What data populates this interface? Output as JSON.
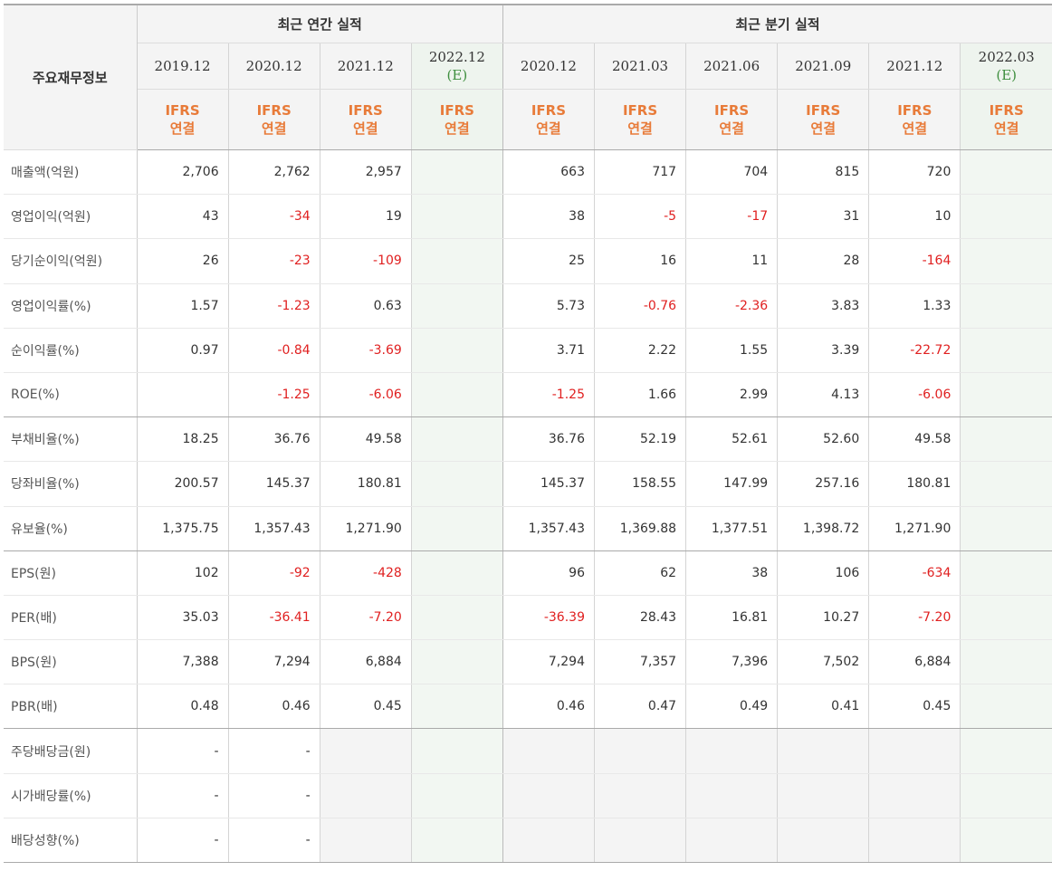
{
  "table_title": "주요재무정보",
  "group_annual": "최근 연간 실적",
  "group_quarter": "최근 분기 실적",
  "periods": [
    {
      "p1": "2019.12",
      "p2": "",
      "est": false
    },
    {
      "p1": "2020.12",
      "p2": "",
      "est": false
    },
    {
      "p1": "2021.12",
      "p2": "",
      "est": false
    },
    {
      "p1": "2022.12",
      "p2": "(E)",
      "est": true
    },
    {
      "p1": "2020.12",
      "p2": "",
      "est": false
    },
    {
      "p1": "2021.03",
      "p2": "",
      "est": false
    },
    {
      "p1": "2021.06",
      "p2": "",
      "est": false
    },
    {
      "p1": "2021.09",
      "p2": "",
      "est": false
    },
    {
      "p1": "2021.12",
      "p2": "",
      "est": false
    },
    {
      "p1": "2022.03",
      "p2": "(E)",
      "est": true
    }
  ],
  "basis_l1": "IFRS",
  "basis_l2": "연결",
  "rows": [
    {
      "label": "매출액(억원)",
      "values": [
        "2,706",
        "2,762",
        "2,957",
        "",
        "663",
        "717",
        "704",
        "815",
        "720",
        ""
      ]
    },
    {
      "label": "영업이익(억원)",
      "values": [
        "43",
        "-34",
        "19",
        "",
        "38",
        "-5",
        "-17",
        "31",
        "10",
        ""
      ]
    },
    {
      "label": "당기순이익(억원)",
      "values": [
        "26",
        "-23",
        "-109",
        "",
        "25",
        "16",
        "11",
        "28",
        "-164",
        ""
      ]
    },
    {
      "label": "영업이익률(%)",
      "values": [
        "1.57",
        "-1.23",
        "0.63",
        "",
        "5.73",
        "-0.76",
        "-2.36",
        "3.83",
        "1.33",
        ""
      ]
    },
    {
      "label": "순이익률(%)",
      "values": [
        "0.97",
        "-0.84",
        "-3.69",
        "",
        "3.71",
        "2.22",
        "1.55",
        "3.39",
        "-22.72",
        ""
      ]
    },
    {
      "label": "ROE(%)",
      "values": [
        "",
        "-1.25",
        "-6.06",
        "",
        "-1.25",
        "1.66",
        "2.99",
        "4.13",
        "-6.06",
        ""
      ]
    },
    {
      "label": "부채비율(%)",
      "values": [
        "18.25",
        "36.76",
        "49.58",
        "",
        "36.76",
        "52.19",
        "52.61",
        "52.60",
        "49.58",
        ""
      ]
    },
    {
      "label": "당좌비율(%)",
      "values": [
        "200.57",
        "145.37",
        "180.81",
        "",
        "145.37",
        "158.55",
        "147.99",
        "257.16",
        "180.81",
        ""
      ]
    },
    {
      "label": "유보율(%)",
      "values": [
        "1,375.75",
        "1,357.43",
        "1,271.90",
        "",
        "1,357.43",
        "1,369.88",
        "1,377.51",
        "1,398.72",
        "1,271.90",
        ""
      ]
    },
    {
      "label": "EPS(원)",
      "values": [
        "102",
        "-92",
        "-428",
        "",
        "96",
        "62",
        "38",
        "106",
        "-634",
        ""
      ]
    },
    {
      "label": "PER(배)",
      "values": [
        "35.03",
        "-36.41",
        "-7.20",
        "",
        "-36.39",
        "28.43",
        "16.81",
        "10.27",
        "-7.20",
        ""
      ]
    },
    {
      "label": "BPS(원)",
      "values": [
        "7,388",
        "7,294",
        "6,884",
        "",
        "7,294",
        "7,357",
        "7,396",
        "7,502",
        "6,884",
        ""
      ]
    },
    {
      "label": "PBR(배)",
      "values": [
        "0.48",
        "0.46",
        "0.45",
        "",
        "0.46",
        "0.47",
        "0.49",
        "0.41",
        "0.45",
        ""
      ]
    },
    {
      "label": "주당배당금(원)",
      "values": [
        "-",
        "-",
        "",
        "",
        "",
        "",
        "",
        "",
        "",
        ""
      ]
    },
    {
      "label": "시가배당률(%)",
      "values": [
        "-",
        "-",
        "",
        "",
        "",
        "",
        "",
        "",
        "",
        ""
      ]
    },
    {
      "label": "배당성향(%)",
      "values": [
        "-",
        "-",
        "",
        "",
        "",
        "",
        "",
        "",
        "",
        ""
      ]
    }
  ],
  "colors": {
    "negative": "#e02020",
    "basis": "#e87b39",
    "estimate_mark": "#3e8e3e",
    "estimate_bg": "#f2f7f2"
  }
}
